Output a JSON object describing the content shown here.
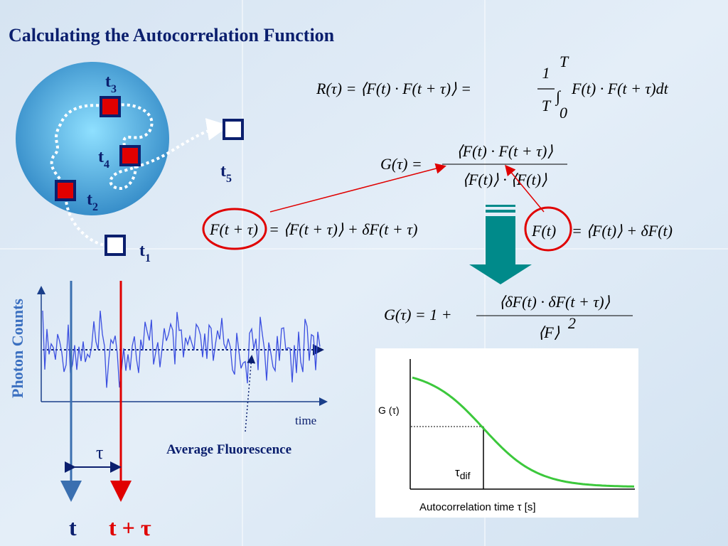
{
  "title": "Calculating the Autocorrelation Function",
  "particle_labels": [
    {
      "base": "t",
      "sub": "3"
    },
    {
      "base": "t",
      "sub": "4"
    },
    {
      "base": "t",
      "sub": "2"
    },
    {
      "base": "t",
      "sub": "5"
    },
    {
      "base": "t",
      "sub": "1"
    }
  ],
  "equations": {
    "r": {
      "left": "R(τ) = ⟨F(t) · F(t + τ)⟩ =",
      "numerator": "1",
      "denominator": "T",
      "integral": "∫",
      "upper": "T",
      "lower": "0",
      "right": "F(t) · F(t + τ)dt"
    },
    "g1": {
      "left": "G(τ) =",
      "numerator": "⟨F(t) · F(t + τ)⟩",
      "denominator": "⟨F(t)⟩ · ⟨F(t)⟩"
    },
    "f_shift": {
      "circled": "F(t + τ)",
      "rest": "= ⟨F(t + τ)⟩ + δF(t + τ)"
    },
    "f": {
      "circled": "F(t)",
      "rest": "= ⟨F(t)⟩ + δF(t)"
    },
    "g2": {
      "left": "G(τ) = 1 +",
      "numerator": "⟨δF(t) · δF(t + τ)⟩",
      "denominator": "⟨F⟩",
      "exponent": "2"
    }
  },
  "trace_plot": {
    "y_label": "Photon Counts",
    "x_label": "time",
    "average_label": "Average Fluorescence",
    "tau": "τ",
    "t_label": "t",
    "t_tau_label": "t + τ"
  },
  "inset": {
    "y_label": "G (τ)",
    "tau_dif": "τ",
    "tau_dif_sub": "dif",
    "x_label": "Autocorrelation time τ [s]"
  }
}
